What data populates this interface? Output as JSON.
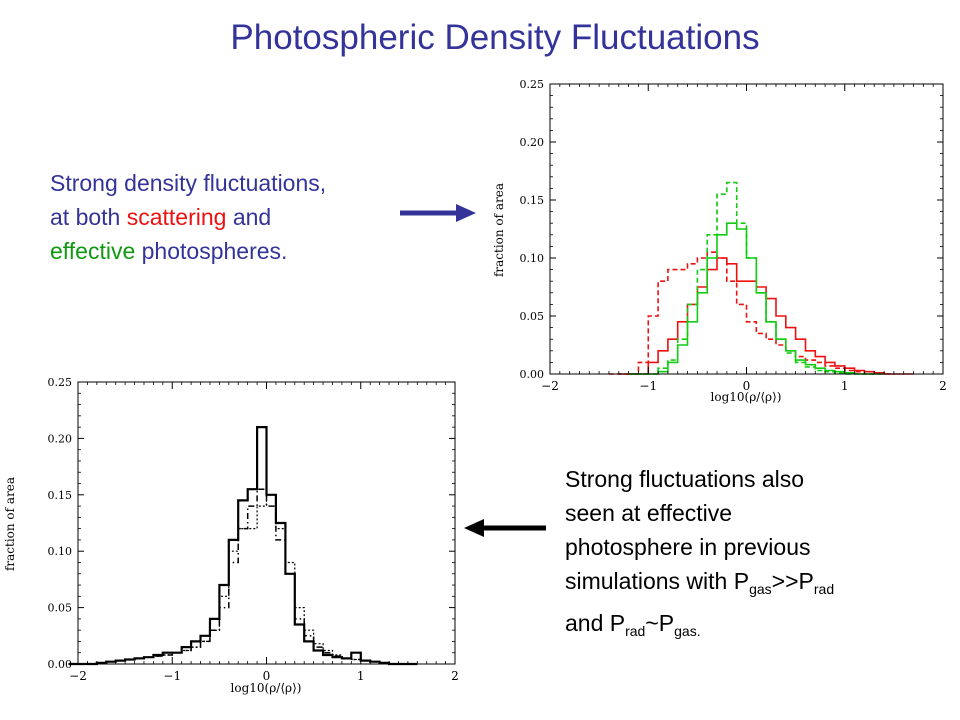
{
  "title": "Photospheric Density Fluctuations",
  "note1": {
    "line1": "Strong density fluctuations,",
    "line2_pre": "at both ",
    "line2_red": "scattering",
    "line2_post": " and",
    "line3_green": "effective",
    "line3_post": " photospheres."
  },
  "note2": {
    "line1": "Strong fluctuations also",
    "line2": "seen at effective",
    "line3": "photosphere in previous",
    "line4_a": "simulations with P",
    "line4_sub1": "gas",
    "line4_b": ">>P",
    "line4_sub2": "rad",
    "line5_a": "and P",
    "line5_sub1": "rad",
    "line5_b": "~P",
    "line5_sub2": "gas.",
    "line5_c": ""
  },
  "colors": {
    "title": "#333399",
    "scattering": "#ee1111",
    "effective": "#11cc11",
    "arrow1": "#333399",
    "arrow2": "#000000"
  },
  "chart_data": [
    {
      "type": "line",
      "title": "",
      "xlabel": "log10(ρ/⟨ρ⟩)",
      "ylabel": "fraction of area",
      "xlim": [
        -2,
        2
      ],
      "ylim": [
        0,
        0.25
      ],
      "xticks": [
        "−2",
        "−1",
        "0",
        "1",
        "2"
      ],
      "yticks": [
        "0.00",
        "0.05",
        "0.10",
        "0.15",
        "0.20",
        "0.25"
      ],
      "step": 0.1,
      "series": [
        {
          "color": "#ee1111",
          "dash": false,
          "start": -1.0,
          "values": [
            0.01,
            0.02,
            0.03,
            0.045,
            0.06,
            0.075,
            0.09,
            0.1,
            0.095,
            0.08,
            0.08,
            0.075,
            0.065,
            0.05,
            0.04,
            0.03,
            0.02,
            0.015,
            0.01,
            0.007,
            0.005,
            0.003,
            0.002,
            0.001
          ]
        },
        {
          "color": "#ee1111",
          "dash": true,
          "start": -1.1,
          "values": [
            0.01,
            0.05,
            0.08,
            0.09,
            0.09,
            0.095,
            0.1,
            0.105,
            0.1,
            0.08,
            0.06,
            0.045,
            0.035,
            0.03,
            0.025,
            0.02,
            0.015,
            0.012,
            0.01,
            0.007,
            0.005,
            0.003,
            0.002
          ]
        },
        {
          "color": "#11cc11",
          "dash": false,
          "start": -0.9,
          "values": [
            0.002,
            0.01,
            0.025,
            0.045,
            0.07,
            0.1,
            0.12,
            0.13,
            0.125,
            0.1,
            0.07,
            0.045,
            0.03,
            0.02,
            0.012,
            0.008,
            0.005,
            0.003,
            0.002,
            0.001
          ]
        },
        {
          "color": "#11cc11",
          "dash": true,
          "start": -0.9,
          "values": [
            0.005,
            0.012,
            0.03,
            0.06,
            0.09,
            0.12,
            0.155,
            0.165,
            0.13,
            0.1,
            0.07,
            0.045,
            0.03,
            0.018,
            0.01,
            0.006,
            0.003,
            0.002,
            0.001
          ]
        }
      ]
    },
    {
      "type": "line",
      "title": "",
      "xlabel": "log10(ρ/⟨ρ⟩)",
      "ylabel": "fraction of area",
      "xlim": [
        -2,
        2
      ],
      "ylim": [
        0,
        0.25
      ],
      "xticks": [
        "−2",
        "−1",
        "0",
        "1",
        "2"
      ],
      "yticks": [
        "0.00",
        "0.05",
        "0.10",
        "0.15",
        "0.20",
        "0.25"
      ],
      "step": 0.1,
      "series": [
        {
          "color": "#000000",
          "dash": "",
          "width": 2.2,
          "start": -1.8,
          "values": [
            0.001,
            0.002,
            0.003,
            0.004,
            0.005,
            0.006,
            0.008,
            0.01,
            0.01,
            0.015,
            0.02,
            0.025,
            0.04,
            0.07,
            0.11,
            0.145,
            0.155,
            0.21,
            0.15,
            0.125,
            0.08,
            0.035,
            0.02,
            0.012,
            0.008,
            0.006,
            0.005,
            0.01,
            0.003,
            0.002,
            0.001
          ]
        },
        {
          "color": "#000000",
          "dash": "6,3,1.5,3",
          "width": 1.5,
          "start": -1.8,
          "values": [
            0.001,
            0.002,
            0.003,
            0.004,
            0.005,
            0.006,
            0.007,
            0.008,
            0.01,
            0.012,
            0.015,
            0.02,
            0.03,
            0.05,
            0.09,
            0.12,
            0.14,
            0.155,
            0.14,
            0.11,
            0.08,
            0.04,
            0.025,
            0.015,
            0.01,
            0.007,
            0.005,
            0.004,
            0.003,
            0.002,
            0.001
          ]
        },
        {
          "color": "#000000",
          "dash": "2,2",
          "width": 1.2,
          "start": -1.8,
          "values": [
            0.001,
            0.002,
            0.003,
            0.004,
            0.005,
            0.006,
            0.007,
            0.008,
            0.01,
            0.012,
            0.015,
            0.02,
            0.03,
            0.06,
            0.1,
            0.12,
            0.12,
            0.14,
            0.15,
            0.12,
            0.09,
            0.05,
            0.03,
            0.018,
            0.012,
            0.008,
            0.005,
            0.004,
            0.003,
            0.002,
            0.001
          ]
        }
      ]
    }
  ]
}
